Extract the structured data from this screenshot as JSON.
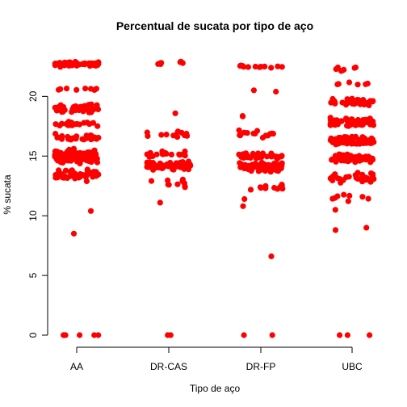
{
  "chart_data": {
    "type": "scatter",
    "title": "Percentual de sucata por tipo de aço",
    "xlabel": "Tipo de aço",
    "ylabel": "% sucata",
    "categories": [
      "AA",
      "DR-CAS",
      "DR-FP",
      "UBC"
    ],
    "ylim": [
      0,
      23
    ],
    "yticks": [
      "0",
      "5",
      "10",
      "15",
      "20"
    ],
    "marker_color": "#ff0000",
    "groups": [
      {
        "name": "AA",
        "bands": [
          {
            "center": 22.7,
            "spread": 0.3,
            "count": 60
          },
          {
            "center": 20.6,
            "spread": 0.2,
            "count": 8
          },
          {
            "center": 19.0,
            "spread": 0.5,
            "count": 45
          },
          {
            "center": 17.7,
            "spread": 0.3,
            "count": 20
          },
          {
            "center": 16.5,
            "spread": 0.4,
            "count": 28
          },
          {
            "center": 15.0,
            "spread": 0.7,
            "count": 140
          },
          {
            "center": 13.4,
            "spread": 0.6,
            "count": 50
          }
        ],
        "extra": [
          10.4,
          8.5,
          0,
          0,
          0,
          0,
          0,
          0
        ]
      },
      {
        "name": "DR-CAS",
        "bands": [
          {
            "center": 22.8,
            "spread": 0.2,
            "count": 7
          },
          {
            "center": 18.6,
            "spread": 0.1,
            "count": 1
          },
          {
            "center": 16.8,
            "spread": 0.4,
            "count": 12
          },
          {
            "center": 15.2,
            "spread": 0.4,
            "count": 16
          },
          {
            "center": 14.2,
            "spread": 0.5,
            "count": 70
          },
          {
            "center": 12.7,
            "spread": 0.5,
            "count": 10
          }
        ],
        "extra": [
          11.1,
          0,
          0
        ]
      },
      {
        "name": "DR-FP",
        "bands": [
          {
            "center": 22.5,
            "spread": 0.2,
            "count": 12
          },
          {
            "center": 20.5,
            "spread": 0.2,
            "count": 2
          },
          {
            "center": 18.3,
            "spread": 0.2,
            "count": 2
          },
          {
            "center": 16.8,
            "spread": 0.5,
            "count": 14
          },
          {
            "center": 15.0,
            "spread": 0.4,
            "count": 30
          },
          {
            "center": 14.1,
            "spread": 0.5,
            "count": 75
          },
          {
            "center": 12.3,
            "spread": 0.5,
            "count": 12
          }
        ],
        "extra": [
          11.4,
          10.8,
          6.6,
          0,
          0
        ]
      },
      {
        "name": "UBC",
        "bands": [
          {
            "center": 22.3,
            "spread": 0.4,
            "count": 7
          },
          {
            "center": 21.0,
            "spread": 0.3,
            "count": 6
          },
          {
            "center": 19.5,
            "spread": 0.4,
            "count": 40
          },
          {
            "center": 17.8,
            "spread": 0.5,
            "count": 60
          },
          {
            "center": 16.3,
            "spread": 0.5,
            "count": 70
          },
          {
            "center": 14.8,
            "spread": 0.5,
            "count": 50
          },
          {
            "center": 13.2,
            "spread": 0.6,
            "count": 30
          },
          {
            "center": 11.5,
            "spread": 0.5,
            "count": 8
          }
        ],
        "extra": [
          10.5,
          9.0,
          8.8,
          0,
          0,
          0
        ]
      }
    ]
  }
}
